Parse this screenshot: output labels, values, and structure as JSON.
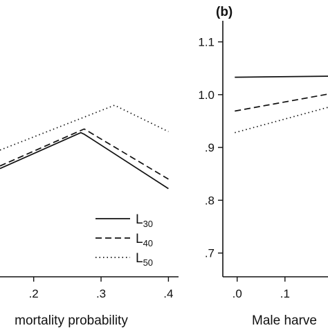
{
  "chart_data": [
    {
      "type": "line",
      "xlabel": "mortality probability",
      "ylabel": "",
      "xlim": [
        0.15,
        0.415
      ],
      "ylim": [
        0.655,
        1.14
      ],
      "x_ticks": [
        ".2",
        ".3",
        ".4"
      ],
      "x_tick_values": [
        0.2,
        0.3,
        0.4
      ],
      "series": [
        {
          "name": "L",
          "sub": "30",
          "dash": "solid",
          "x": [
            0.15,
            0.27,
            0.275,
            0.4
          ],
          "y": [
            0.86,
            0.928,
            0.925,
            0.822
          ]
        },
        {
          "name": "L",
          "sub": "40",
          "dash": "dashed",
          "x": [
            0.15,
            0.275,
            0.4
          ],
          "y": [
            0.865,
            0.935,
            0.84
          ]
        },
        {
          "name": "L",
          "sub": "50",
          "dash": "dotted",
          "x": [
            0.15,
            0.32,
            0.4
          ],
          "y": [
            0.895,
            0.98,
            0.93
          ]
        }
      ],
      "legend_position": "bottom-right"
    },
    {
      "type": "line",
      "panel_label": "(b)",
      "xlabel": "Male harve",
      "ylabel": "",
      "xlim": [
        -0.03,
        0.19
      ],
      "ylim": [
        0.655,
        1.14
      ],
      "x_ticks": [
        ".0",
        ".1"
      ],
      "x_tick_values": [
        0.0,
        0.1
      ],
      "y_ticks": [
        "1.1",
        "1.0",
        ".9",
        ".8",
        ".7"
      ],
      "y_tick_values": [
        1.1,
        1.0,
        0.9,
        0.8,
        0.7
      ],
      "series": [
        {
          "name": "L",
          "sub": "30",
          "dash": "solid",
          "x": [
            -0.005,
            0.19
          ],
          "y": [
            1.033,
            1.035
          ]
        },
        {
          "name": "L",
          "sub": "40",
          "dash": "dashed",
          "x": [
            -0.005,
            0.19
          ],
          "y": [
            0.969,
            1.001
          ]
        },
        {
          "name": "L",
          "sub": "50",
          "dash": "dotted",
          "x": [
            -0.005,
            0.19
          ],
          "y": [
            0.928,
            0.976
          ]
        }
      ]
    }
  ]
}
